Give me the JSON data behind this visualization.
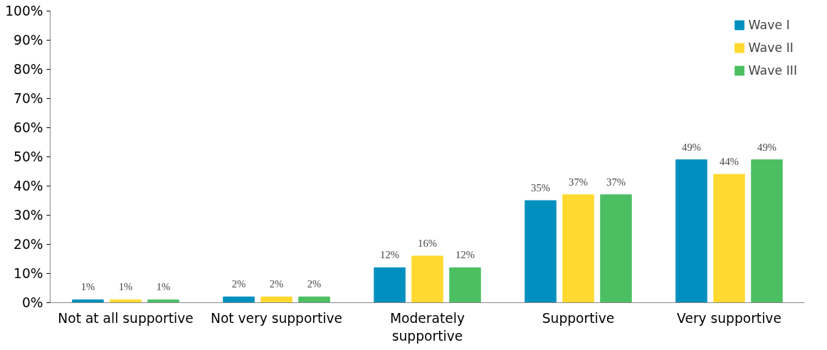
{
  "chart_data": {
    "type": "bar",
    "categories": [
      "Not at all supportive",
      "Not very supportive",
      "Moderately\nsupportive",
      "Supportive",
      "Very supportive"
    ],
    "series": [
      {
        "name": "Wave I",
        "color": "#008fbf",
        "values": [
          1,
          2,
          12,
          35,
          49
        ],
        "value_labels": [
          "1%",
          "2%",
          "12%",
          "35%",
          "49%"
        ]
      },
      {
        "name": "Wave II",
        "color": "#ffd92f",
        "values": [
          1,
          2,
          16,
          37,
          44
        ],
        "value_labels": [
          "1%",
          "2%",
          "16%",
          "37%",
          "44%"
        ]
      },
      {
        "name": "Wave III",
        "color": "#4cbf63",
        "values": [
          1,
          2,
          12,
          37,
          49
        ],
        "value_labels": [
          "1%",
          "2%",
          "12%",
          "37%",
          "49%"
        ]
      }
    ],
    "ylim": [
      0,
      100
    ],
    "yticks": [
      {
        "value": 0,
        "label": "0%"
      },
      {
        "value": 10,
        "label": "10%"
      },
      {
        "value": 20,
        "label": "20%"
      },
      {
        "value": 30,
        "label": "30%"
      },
      {
        "value": 40,
        "label": "40%"
      },
      {
        "value": 50,
        "label": "50%"
      },
      {
        "value": 60,
        "label": "60%"
      },
      {
        "value": 70,
        "label": "70%"
      },
      {
        "value": 80,
        "label": "80%"
      },
      {
        "value": 90,
        "label": "90%"
      },
      {
        "value": 100,
        "label": "100%"
      }
    ],
    "grid": false,
    "legend": "top right"
  }
}
